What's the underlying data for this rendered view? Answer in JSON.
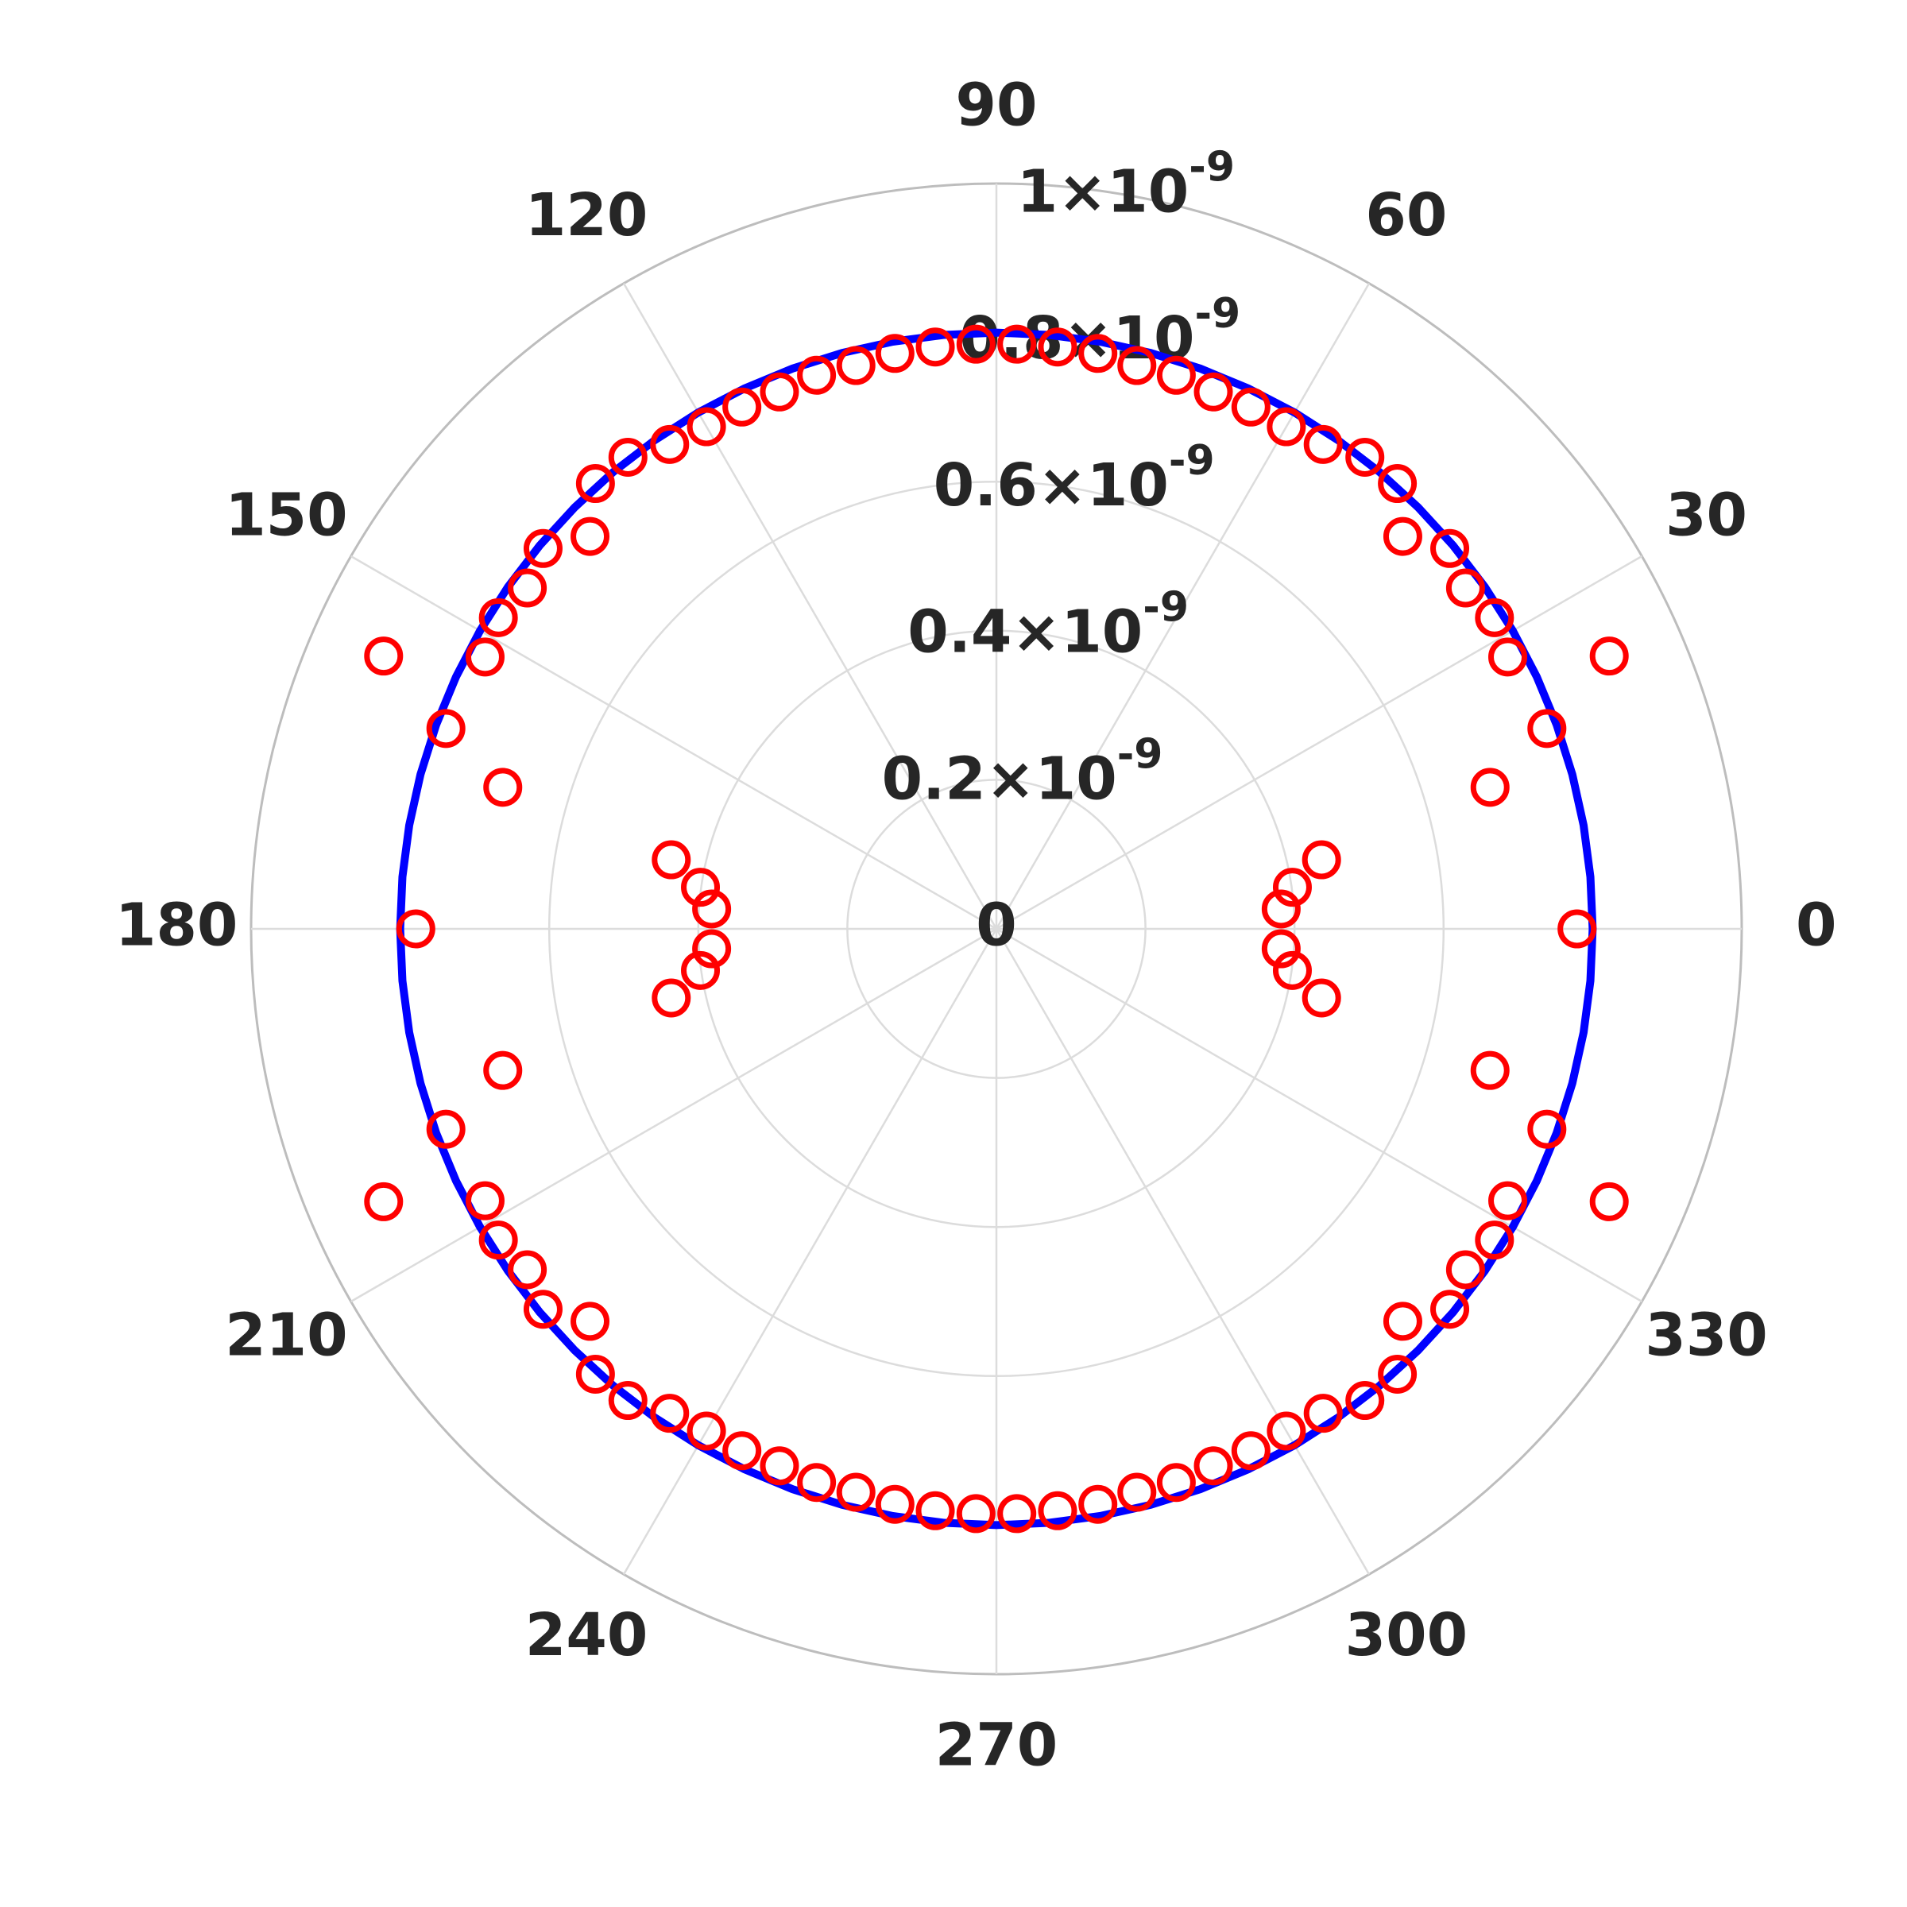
{
  "chart_data": {
    "type": "polar",
    "thetaticks": [
      0,
      30,
      60,
      90,
      120,
      150,
      180,
      210,
      240,
      270,
      300,
      330
    ],
    "rlim": [
      0,
      1e-09
    ],
    "rticks": [
      0,
      {
        "value": 2e-10,
        "label": "0.2×10",
        "exponent": "-9"
      },
      {
        "value": 4e-10,
        "label": "0.4×10",
        "exponent": "-9"
      },
      {
        "value": 6e-10,
        "label": "0.6×10",
        "exponent": "-9"
      },
      {
        "value": 8e-10,
        "label": "0.8×10",
        "exponent": "-9"
      },
      {
        "value": 1e-09,
        "label": "1×10",
        "exponent": "-9"
      }
    ],
    "grid": true,
    "series": [
      {
        "type": "line",
        "color": "#0000ff",
        "theta": [
          0,
          5,
          10,
          15,
          20,
          25,
          30,
          35,
          40,
          45,
          50,
          55,
          60,
          65,
          70,
          75,
          80,
          85,
          90,
          95,
          100,
          105,
          110,
          115,
          120,
          125,
          130,
          135,
          140,
          145,
          150,
          155,
          160,
          165,
          170,
          175,
          180,
          185,
          190,
          195,
          200,
          205,
          210,
          215,
          220,
          225,
          230,
          235,
          240,
          245,
          250,
          255,
          260,
          265,
          270,
          275,
          280,
          285,
          290,
          295,
          300,
          305,
          310,
          315,
          320,
          325,
          330,
          335,
          340,
          345,
          350,
          355
        ],
        "r": [
          8e-10,
          8e-10,
          8e-10,
          8e-10,
          8e-10,
          8e-10,
          8e-10,
          8e-10,
          8e-10,
          8e-10,
          8e-10,
          8e-10,
          8e-10,
          8e-10,
          8e-10,
          8e-10,
          8e-10,
          8e-10,
          8e-10,
          8e-10,
          8e-10,
          8e-10,
          8e-10,
          8e-10,
          8e-10,
          8e-10,
          8e-10,
          8e-10,
          8e-10,
          8e-10,
          8e-10,
          8e-10,
          8e-10,
          8e-10,
          8e-10,
          8e-10,
          8e-10,
          8e-10,
          8e-10,
          8e-10,
          8e-10,
          8e-10,
          8e-10,
          8e-10,
          8e-10,
          8e-10,
          8e-10,
          8e-10,
          8e-10,
          8e-10,
          8e-10,
          8e-10,
          8e-10,
          8e-10,
          8e-10,
          8e-10,
          8e-10,
          8e-10,
          8e-10,
          8e-10,
          8e-10,
          8e-10,
          8e-10,
          8e-10,
          8e-10,
          8e-10,
          8e-10,
          8e-10,
          8e-10,
          8e-10,
          8e-10,
          8e-10
        ]
      },
      {
        "type": "scatter",
        "color": "#ff0000",
        "theta": [
          0,
          4,
          8,
          12,
          16,
          20,
          24,
          28,
          32,
          36,
          40,
          44,
          48,
          52,
          56,
          60,
          64,
          68,
          72,
          76,
          80,
          84,
          88,
          92,
          96,
          100,
          104,
          108,
          112,
          116,
          120,
          124,
          128,
          132,
          136,
          140,
          144,
          148,
          152,
          156,
          160,
          164,
          168,
          172,
          176,
          180,
          184,
          188,
          192,
          196,
          200,
          204,
          208,
          212,
          216,
          220,
          224,
          228,
          232,
          236,
          240,
          244,
          248,
          252,
          256,
          260,
          264,
          268,
          272,
          276,
          280,
          284,
          288,
          292,
          296,
          300,
          304,
          308,
          312,
          316,
          320,
          324,
          328,
          332,
          336,
          340,
          344,
          348,
          352,
          356
        ],
        "r": [
          7.79e-10,
          3.83e-10,
          4.01e-10,
          4.46e-10,
          6.89e-10,
          7.86e-10,
          9e-10,
          7.77e-10,
          7.88e-10,
          7.78e-10,
          7.94e-10,
          7.58e-10,
          8.04e-10,
          8.03e-10,
          7.84e-10,
          7.78e-10,
          7.79e-10,
          7.77e-10,
          7.81e-10,
          7.79e-10,
          7.84e-10,
          7.85e-10,
          7.85e-10,
          7.85e-10,
          7.85e-10,
          7.84e-10,
          7.79e-10,
          7.81e-10,
          7.77e-10,
          7.79e-10,
          7.78e-10,
          7.84e-10,
          8.03e-10,
          8.04e-10,
          7.58e-10,
          7.94e-10,
          7.78e-10,
          7.88e-10,
          7.77e-10,
          9e-10,
          7.86e-10,
          6.89e-10,
          4.46e-10,
          4.01e-10,
          3.83e-10,
          7.79e-10,
          3.83e-10,
          4.01e-10,
          4.46e-10,
          6.89e-10,
          7.86e-10,
          9e-10,
          7.77e-10,
          7.88e-10,
          7.78e-10,
          7.94e-10,
          7.58e-10,
          8.04e-10,
          8.03e-10,
          7.84e-10,
          7.78e-10,
          7.79e-10,
          7.77e-10,
          7.81e-10,
          7.79e-10,
          7.84e-10,
          7.85e-10,
          7.85e-10,
          7.85e-10,
          7.85e-10,
          7.84e-10,
          7.79e-10,
          7.81e-10,
          7.77e-10,
          7.79e-10,
          7.78e-10,
          7.84e-10,
          8.03e-10,
          8.04e-10,
          7.58e-10,
          7.94e-10,
          7.78e-10,
          7.88e-10,
          7.77e-10,
          9e-10,
          7.86e-10,
          6.89e-10,
          4.46e-10,
          4.01e-10,
          3.83e-10
        ]
      }
    ]
  }
}
